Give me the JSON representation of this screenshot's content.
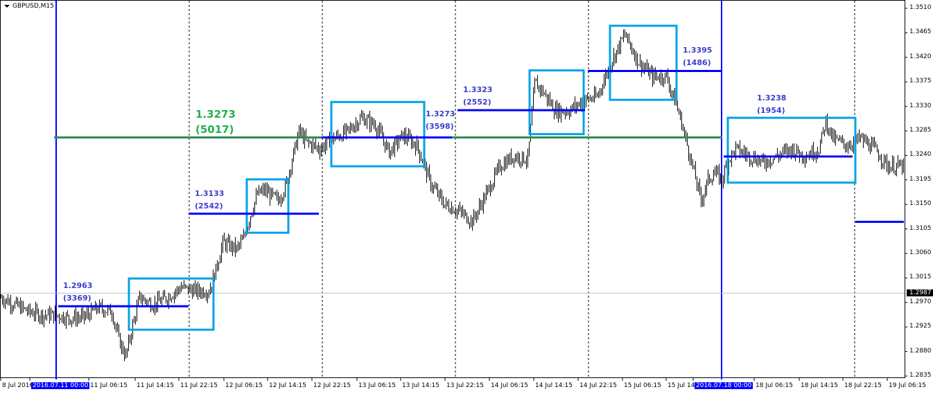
{
  "chart_title": "GBPUSD,M15",
  "current_price": "1.2987",
  "colors": {
    "bars": "#000000",
    "levels": "#0000ff",
    "boxes": "#00a2e8",
    "average": "#2e8b57",
    "average_label": "#22b14c",
    "label": "#3d3dcc",
    "current_line": "#c0c0c0"
  },
  "price_axis": [
    "1.3510",
    "1.3465",
    "1.3420",
    "1.3375",
    "1.3330",
    "1.3285",
    "1.3240",
    "1.3195",
    "1.3150",
    "1.3105",
    "1.3060",
    "1.3015",
    "1.2970",
    "1.2925",
    "1.2880",
    "1.2835"
  ],
  "time_axis": [
    {
      "label": "8 Jul 2016",
      "highlight": false
    },
    {
      "label": "2016.07.11 00:00",
      "highlight": true
    },
    {
      "label": "11 Jul 06:15",
      "highlight": false
    },
    {
      "label": "11 Jul 14:15",
      "highlight": false
    },
    {
      "label": "11 Jul 22:15",
      "highlight": false
    },
    {
      "label": "12 Jul 06:15",
      "highlight": false
    },
    {
      "label": "12 Jul 14:15",
      "highlight": false
    },
    {
      "label": "12 Jul 22:15",
      "highlight": false
    },
    {
      "label": "13 Jul 06:15",
      "highlight": false
    },
    {
      "label": "13 Jul 14:15",
      "highlight": false
    },
    {
      "label": "13 Jul 22:15",
      "highlight": false
    },
    {
      "label": "14 Jul 06:15",
      "highlight": false
    },
    {
      "label": "14 Jul 14:15",
      "highlight": false
    },
    {
      "label": "14 Jul 22:15",
      "highlight": false
    },
    {
      "label": "15 Jul 06:15",
      "highlight": false
    },
    {
      "label": "15 Jul 14:15",
      "highlight": false
    },
    {
      "label": "2016.07.18 00:00",
      "highlight": true
    },
    {
      "label": "18 Jul 06:15",
      "highlight": false
    },
    {
      "label": "18 Jul 14:15",
      "highlight": false
    },
    {
      "label": "18 Jul 22:15",
      "highlight": false
    },
    {
      "label": "19 Jul 06:15",
      "highlight": false
    }
  ],
  "chart_data": {
    "type": "ohlc",
    "symbol": "GBPUSD",
    "timeframe": "M15",
    "ylim": [
      1.2835,
      1.351
    ],
    "price_path": [
      [
        0,
        1.2979
      ],
      [
        10,
        1.2966
      ],
      [
        20,
        1.2953
      ],
      [
        30,
        1.2947
      ],
      [
        40,
        1.2947
      ],
      [
        50,
        1.2941
      ],
      [
        60,
        1.2943
      ],
      [
        70,
        1.296
      ],
      [
        80,
        1.2953
      ],
      [
        85,
        1.2902
      ],
      [
        90,
        1.2871
      ],
      [
        95,
        1.2928
      ],
      [
        100,
        1.2979
      ],
      [
        110,
        1.2966
      ],
      [
        120,
        1.2979
      ],
      [
        130,
        1.2998
      ],
      [
        140,
        1.2991
      ],
      [
        150,
        1.2991
      ],
      [
        155,
        1.303
      ],
      [
        160,
        1.308
      ],
      [
        170,
        1.3068
      ],
      [
        175,
        1.3087
      ],
      [
        180,
        1.3131
      ],
      [
        185,
        1.3169
      ],
      [
        190,
        1.3176
      ],
      [
        200,
        1.3157
      ],
      [
        205,
        1.3182
      ],
      [
        210,
        1.3233
      ],
      [
        215,
        1.3284
      ],
      [
        220,
        1.3265
      ],
      [
        230,
        1.3252
      ],
      [
        240,
        1.3271
      ],
      [
        250,
        1.3284
      ],
      [
        260,
        1.3309
      ],
      [
        270,
        1.3296
      ],
      [
        280,
        1.3246
      ],
      [
        290,
        1.3277
      ],
      [
        300,
        1.3258
      ],
      [
        310,
        1.3188
      ],
      [
        320,
        1.315
      ],
      [
        330,
        1.3138
      ],
      [
        340,
        1.3119
      ],
      [
        350,
        1.3169
      ],
      [
        360,
        1.322
      ],
      [
        370,
        1.3239
      ],
      [
        380,
        1.3233
      ],
      [
        385,
        1.3373
      ],
      [
        390,
        1.336
      ],
      [
        400,
        1.3322
      ],
      [
        410,
        1.3322
      ],
      [
        420,
        1.3341
      ],
      [
        430,
        1.3347
      ],
      [
        440,
        1.3411
      ],
      [
        450,
        1.3462
      ],
      [
        460,
        1.3411
      ],
      [
        470,
        1.3385
      ],
      [
        480,
        1.3385
      ],
      [
        490,
        1.3309
      ],
      [
        500,
        1.3208
      ],
      [
        505,
        1.3157
      ],
      [
        510,
        1.3195
      ],
      [
        515,
        1.3208
      ],
      [
        520,
        1.3195
      ],
      [
        525,
        1.3233
      ],
      [
        530,
        1.3252
      ],
      [
        540,
        1.3239
      ],
      [
        550,
        1.3227
      ],
      [
        560,
        1.3239
      ],
      [
        570,
        1.3252
      ],
      [
        580,
        1.3239
      ],
      [
        590,
        1.3252
      ],
      [
        595,
        1.3303
      ],
      [
        600,
        1.3271
      ],
      [
        610,
        1.3258
      ],
      [
        620,
        1.3271
      ],
      [
        630,
        1.3252
      ],
      [
        640,
        1.322
      ],
      [
        650,
        1.322
      ]
    ],
    "levels": [
      {
        "price": "1.2963",
        "count": "(3369)",
        "from_bar": 42,
        "to_bar": 136
      },
      {
        "price": "1.3133",
        "count": "(2542)",
        "from_bar": 136,
        "to_bar": 230
      },
      {
        "price": "1.3273",
        "count": "(3598)",
        "from_bar": 232,
        "to_bar": 326
      },
      {
        "price": "1.3323",
        "count": "(2552)",
        "from_bar": 330,
        "to_bar": 422
      },
      {
        "price": "1.3395",
        "count": "(1486)",
        "from_bar": 424,
        "to_bar": 520
      },
      {
        "price": "1.3238",
        "count": "(1954)",
        "from_bar": 522,
        "to_bar": 615
      },
      {
        "price": "1.3118",
        "count": "",
        "from_bar": 617,
        "to_bar": 652
      }
    ],
    "average_level": {
      "price": "1.3273",
      "count": "(5017)",
      "from_bar": 40,
      "to_bar": 520
    },
    "range_boxes": [
      {
        "high": 1.3014,
        "low": 1.292,
        "from_bar": 93,
        "to_bar": 154
      },
      {
        "high": 1.3196,
        "low": 1.3098,
        "from_bar": 178,
        "to_bar": 208
      },
      {
        "high": 1.3338,
        "low": 1.322,
        "from_bar": 239,
        "to_bar": 306
      },
      {
        "high": 1.3396,
        "low": 1.3279,
        "from_bar": 382,
        "to_bar": 421
      },
      {
        "high": 1.3478,
        "low": 1.3342,
        "from_bar": 440,
        "to_bar": 488
      },
      {
        "high": 1.3309,
        "low": 1.319,
        "from_bar": 525,
        "to_bar": 617
      }
    ],
    "period_separators_bars": [
      136,
      232,
      328,
      424,
      616
    ],
    "week_separators_bars": [
      40,
      520
    ]
  }
}
